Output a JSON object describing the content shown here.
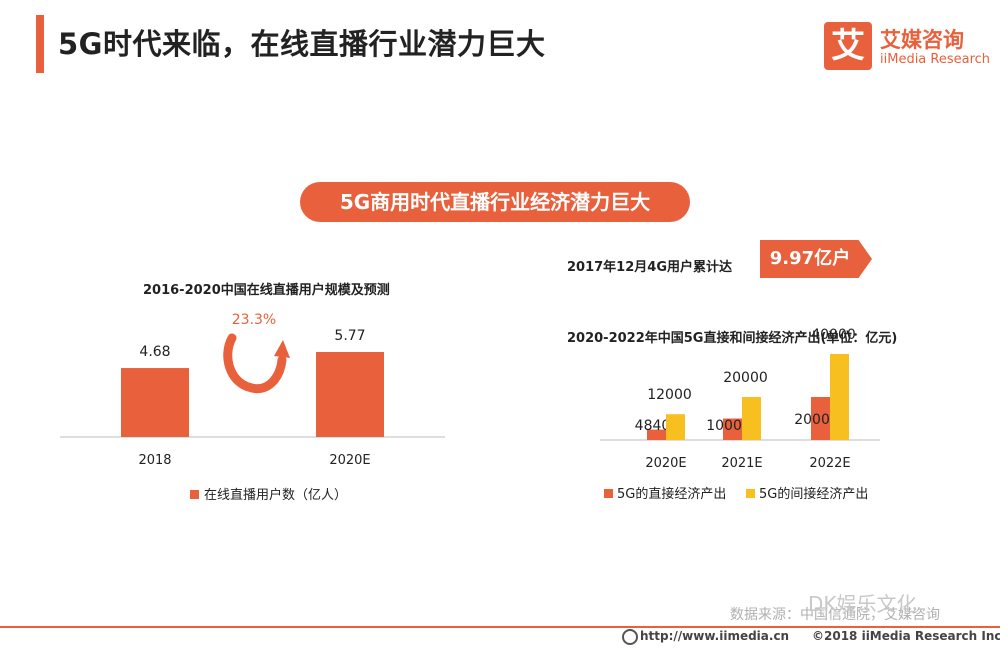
{
  "header": {
    "title": "5G时代来临，在线直播行业潜力巨大",
    "logo_char": "艾",
    "brand_cn": "艾媒咨询",
    "brand_en": "iiMedia Research"
  },
  "banner": "5G商用时代直播行业经济潜力巨大",
  "stat": {
    "label": "2017年12月4G用户累计达",
    "value": "9.97亿户"
  },
  "colors": {
    "accent": "#e8603c",
    "direct": "#e8603c",
    "indirect": "#f7c020"
  },
  "chart_data": [
    {
      "type": "bar",
      "title": "2016-2020中国在线直播用户规模及预测",
      "categories": [
        "2018",
        "2020E"
      ],
      "series": [
        {
          "name": "在线直播用户数（亿人）",
          "values": [
            4.68,
            5.77
          ]
        }
      ],
      "annotations": [
        "23.3%"
      ],
      "legend": "bottom"
    },
    {
      "type": "bar",
      "title": "2020-2022年中国5G直接和间接经济产出(单位：亿元)",
      "categories": [
        "2020E",
        "2021E",
        "2022E"
      ],
      "series": [
        {
          "name": "5G的直接经济产出",
          "values": [
            4840,
            10000,
            20000
          ]
        },
        {
          "name": "5G的间接经济产出",
          "values": [
            12000,
            20000,
            40000
          ]
        }
      ],
      "legend": "bottom"
    }
  ],
  "footer": {
    "source": "数据来源：中国信通院，艾媒咨询",
    "url": "http://www.iimedia.cn",
    "copyright": "©2018  iiMedia Research  Inc"
  },
  "watermark": "DK娱乐文化"
}
